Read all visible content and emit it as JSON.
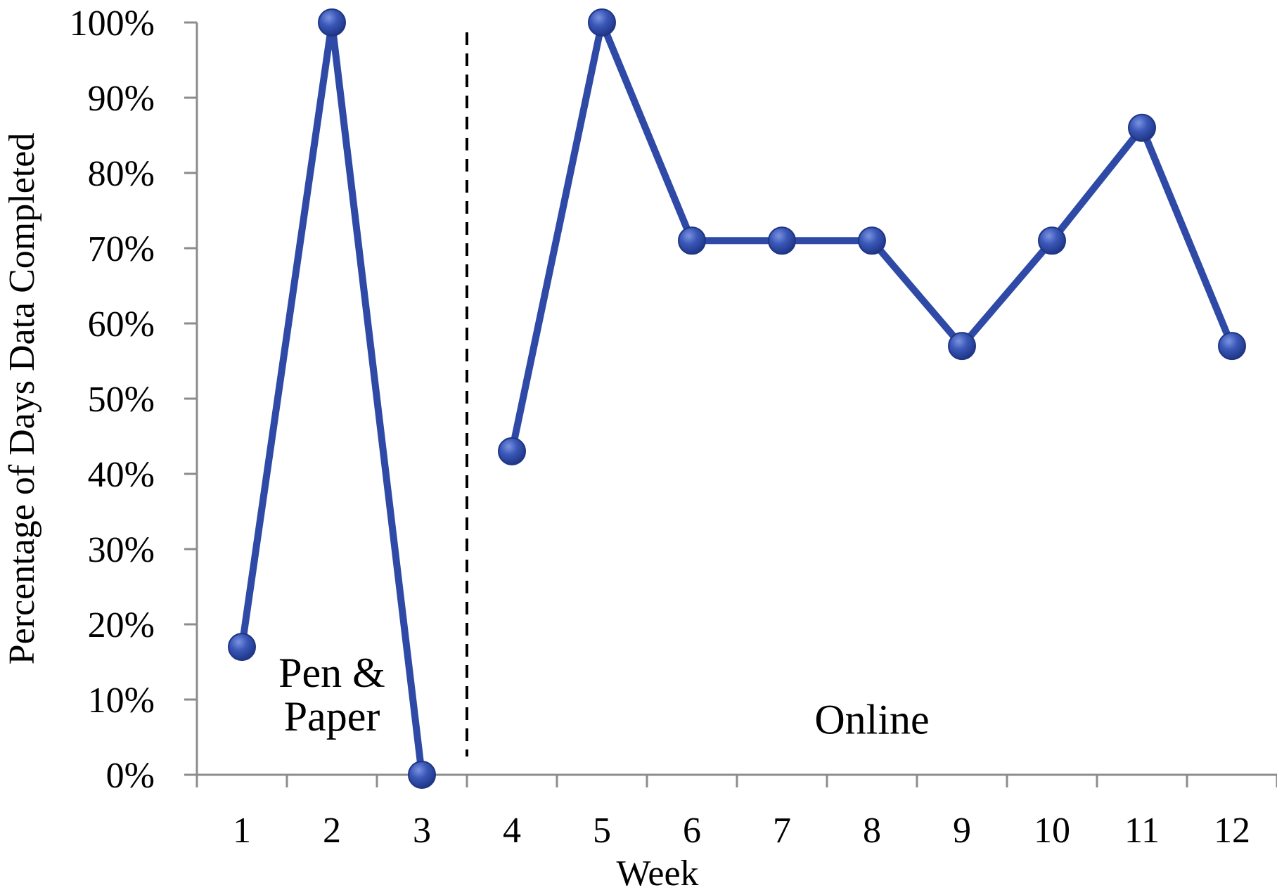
{
  "chart_data": {
    "type": "line",
    "title": "",
    "xlabel": "Week",
    "ylabel": "Percentage of Days Data Completed",
    "categories": [
      "1",
      "2",
      "3",
      "4",
      "5",
      "6",
      "7",
      "8",
      "9",
      "10",
      "11",
      "12"
    ],
    "ylim": [
      0,
      100
    ],
    "yticks": [
      "0%",
      "10%",
      "20%",
      "30%",
      "40%",
      "50%",
      "60%",
      "70%",
      "80%",
      "90%",
      "100%"
    ],
    "grid": false,
    "legend": "none",
    "series": [
      {
        "segments": [
          {
            "x": [
              1,
              2,
              3
            ],
            "y": [
              17,
              100,
              0
            ]
          },
          {
            "x": [
              4,
              5,
              6,
              7,
              8,
              9,
              10,
              11,
              12
            ],
            "y": [
              43,
              100,
              71,
              71,
              71,
              57,
              71,
              86,
              57
            ]
          }
        ]
      }
    ],
    "divider": {
      "between": [
        3,
        4
      ],
      "style": "dashed"
    },
    "annotations": [
      {
        "lines": [
          "Pen &",
          "Paper"
        ],
        "x": 2,
        "y": 10
      },
      {
        "lines": [
          "Online"
        ],
        "x": 8,
        "y": 9
      }
    ],
    "colors": {
      "line": "#2E4AA6",
      "marker": "#2E4AA6",
      "marker_highlight": "#6F86D8",
      "axis": "#8C8C8C",
      "divider": "#000000"
    }
  }
}
